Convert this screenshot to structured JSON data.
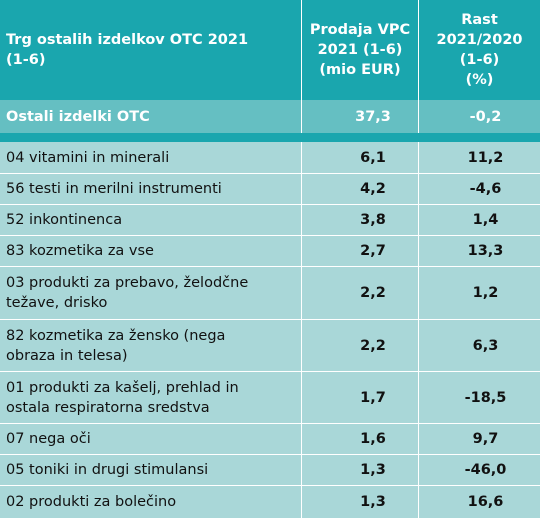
{
  "header": {
    "col1": "Trg ostalih izdelkov OTC 2021\n(1-6)",
    "col2": "Prodaja VPC\n2021 (1-6)\n(mio EUR)",
    "col3": "Rast\n2021/2020\n(1-6)\n(%)"
  },
  "total": {
    "label": "Ostali izdelki OTC",
    "sales": "37,3",
    "growth": "-0,2"
  },
  "rows": [
    {
      "label": "04 vitamini in minerali",
      "sales": "6,1",
      "growth": "11,2"
    },
    {
      "label": "56 testi in merilni instrumenti",
      "sales": "4,2",
      "growth": "-4,6"
    },
    {
      "label": "52 inkontinenca",
      "sales": "3,8",
      "growth": "1,4"
    },
    {
      "label": "83 kozmetika za vse",
      "sales": "2,7",
      "growth": "13,3"
    },
    {
      "label": "03 produkti za prebavo, želodčne\n     težave, drisko",
      "sales": "2,2",
      "growth": "1,2"
    },
    {
      "label": "82 kozmetika za žensko (nega\n     obraza in telesa)",
      "sales": "2,2",
      "growth": "6,3"
    },
    {
      "label": "01 produkti za kašelj, prehlad in\n     ostala respiratorna sredstva",
      "sales": "1,7",
      "growth": "-18,5"
    },
    {
      "label": "07 nega oči",
      "sales": "1,6",
      "growth": "9,7"
    },
    {
      "label": "05 toniki in drugi stimulansi",
      "sales": "1,3",
      "growth": "-46,0"
    },
    {
      "label": "02 produkti za bolečino",
      "sales": "1,3",
      "growth": "16,6"
    }
  ]
}
